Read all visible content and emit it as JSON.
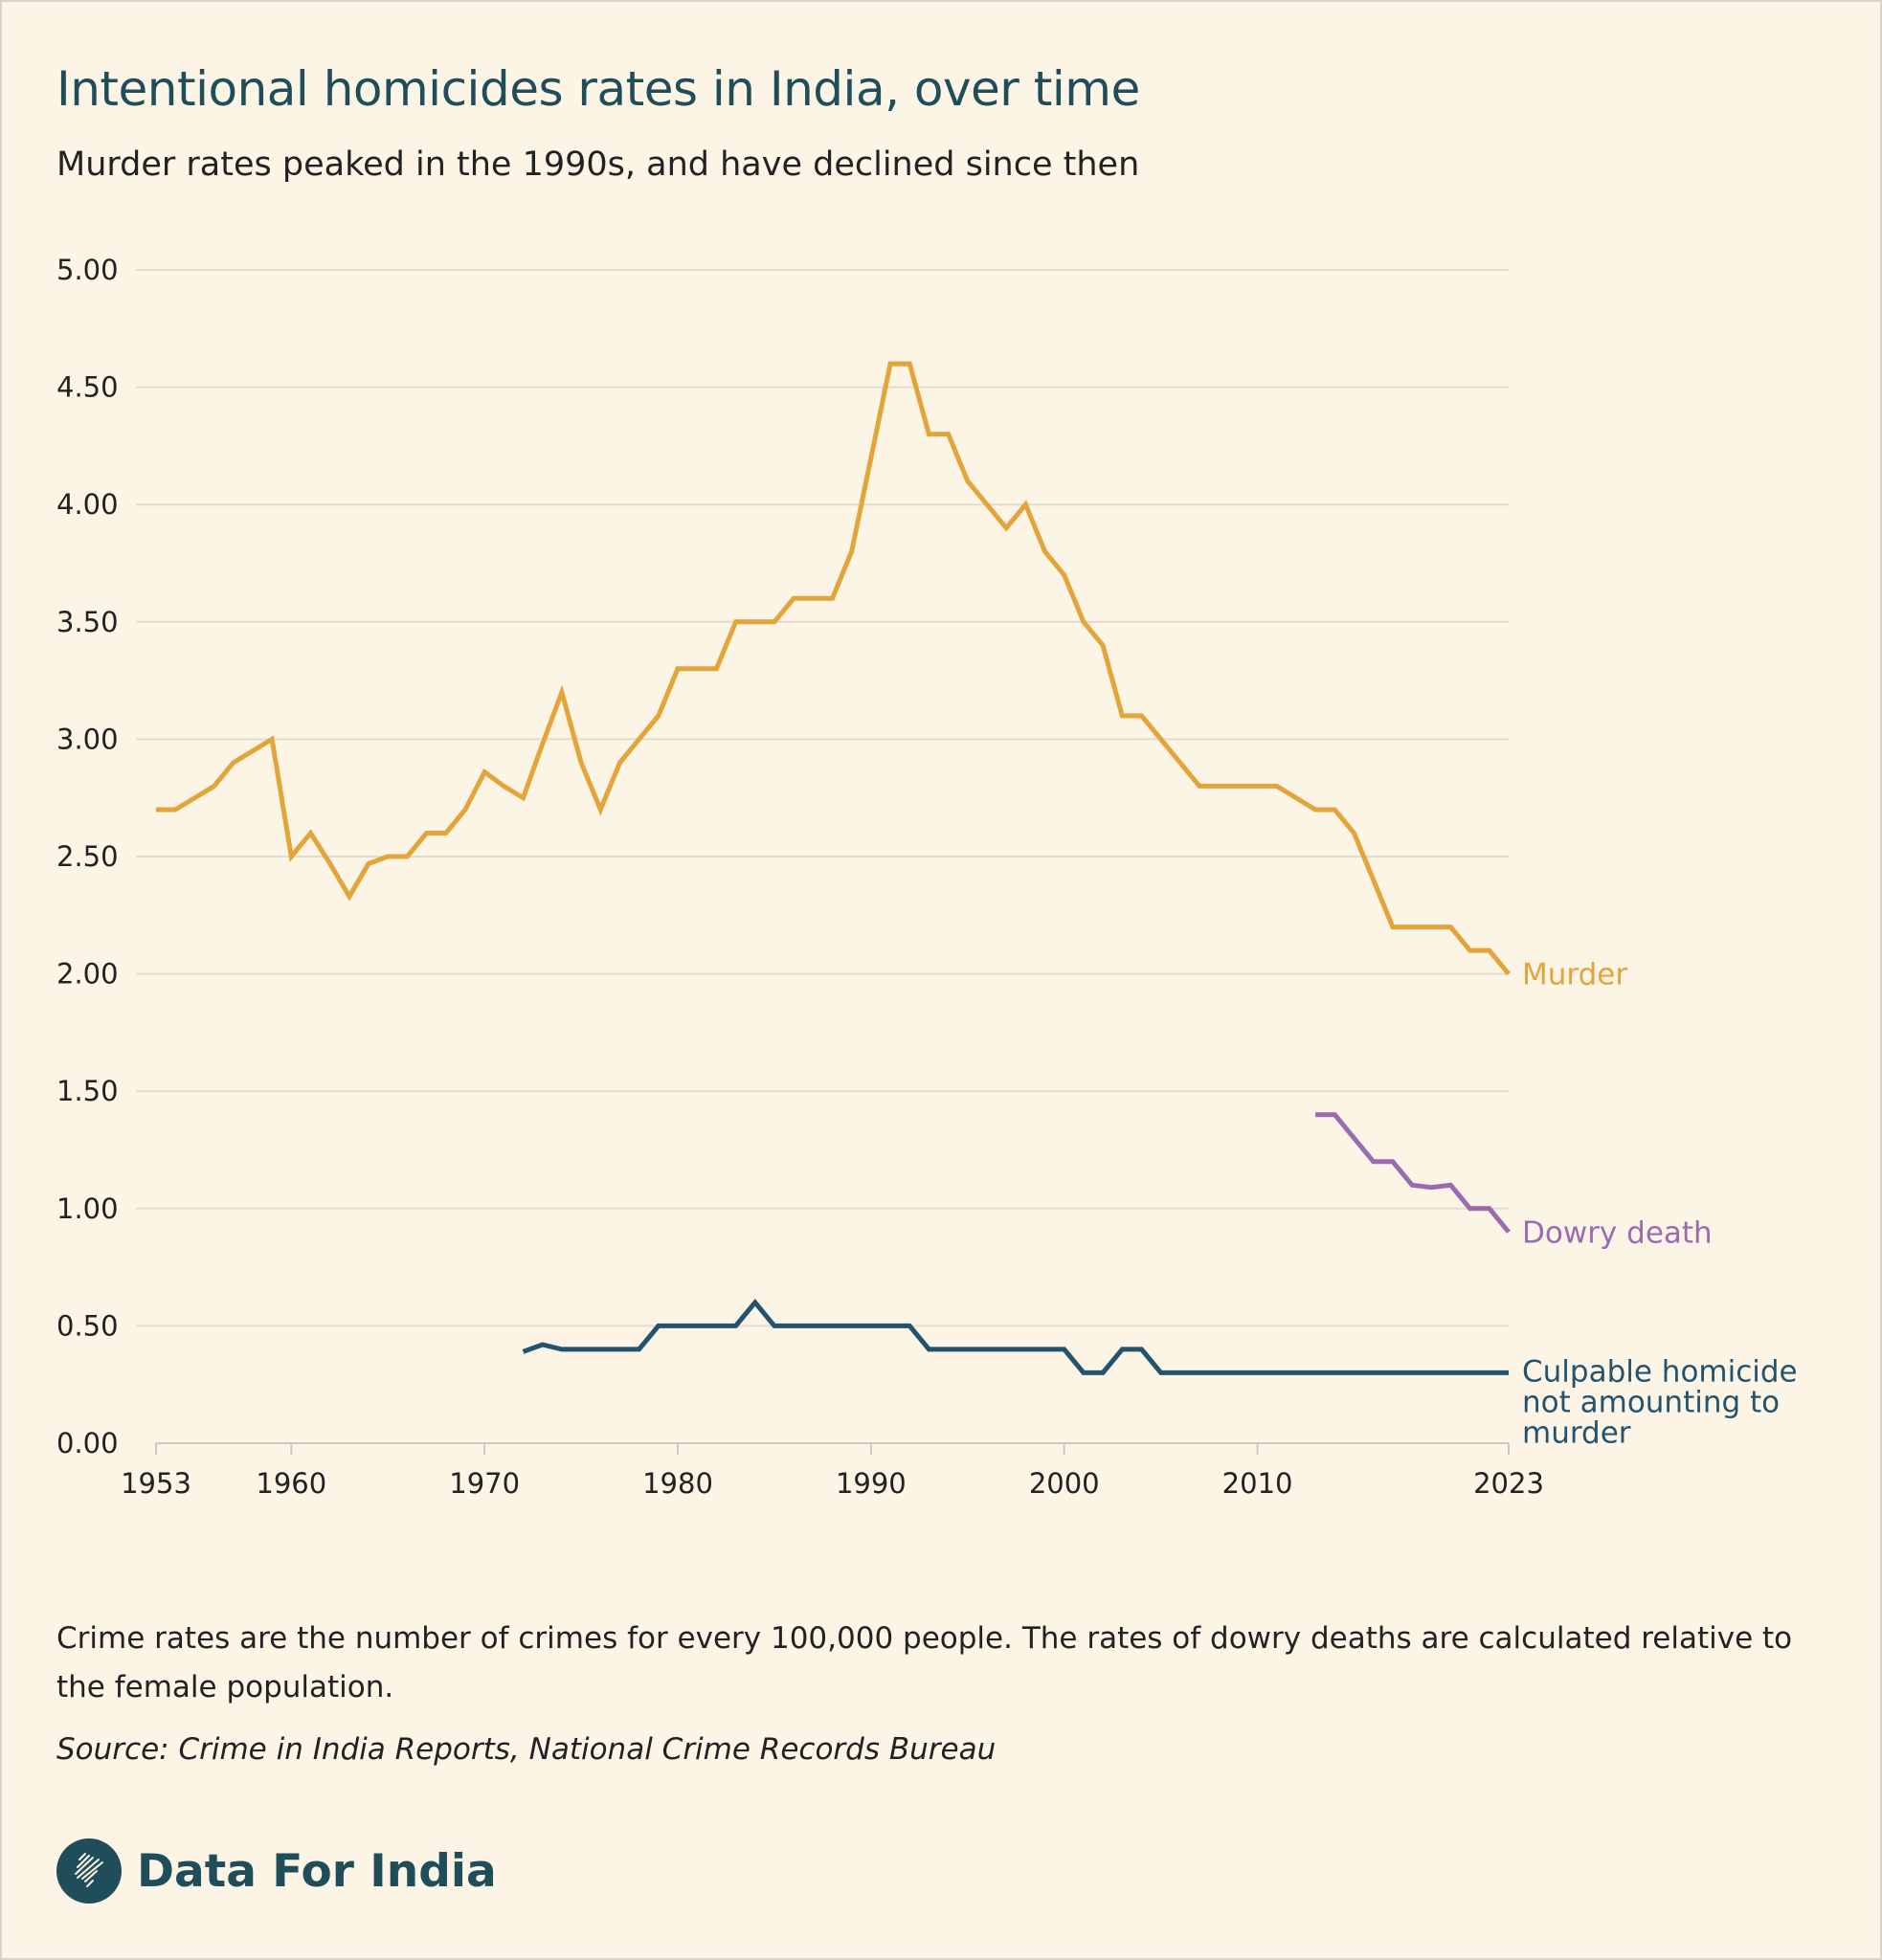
{
  "title": "Intentional homicides rates in India, over time",
  "subtitle": "Murder rates peaked in the 1990s, and have declined since then",
  "note": "Crime rates are the number of crimes for every 100,000 people. The rates of dowry deaths are calculated relative to the female population.",
  "source": "Source: Crime in India Reports, National Crime Records Bureau",
  "brand": "Data For India",
  "logo_icon": "india-map-icon",
  "chart_data": {
    "type": "line",
    "title": "Intentional homicides rates in India, over time",
    "xlabel": "",
    "ylabel": "",
    "xlim": [
      1953,
      2023
    ],
    "ylim": [
      0,
      5
    ],
    "grid": true,
    "legend": "inline-right",
    "x_ticks": [
      "1953",
      "1960",
      "1970",
      "1980",
      "1990",
      "2000",
      "2010",
      "2023"
    ],
    "y_ticks": [
      "0.00",
      "0.50",
      "1.00",
      "1.50",
      "2.00",
      "2.50",
      "3.00",
      "3.50",
      "4.00",
      "4.50",
      "5.00"
    ],
    "series": [
      {
        "name": "Murder",
        "color": "#e3a43a",
        "x": [
          1953,
          1954,
          1955,
          1956,
          1957,
          1958,
          1959,
          1960,
          1961,
          1962,
          1963,
          1964,
          1965,
          1966,
          1967,
          1968,
          1969,
          1970,
          1971,
          1972,
          1973,
          1974,
          1975,
          1976,
          1977,
          1978,
          1979,
          1980,
          1981,
          1982,
          1983,
          1984,
          1985,
          1986,
          1987,
          1988,
          1989,
          1990,
          1991,
          1992,
          1993,
          1994,
          1995,
          1996,
          1997,
          1998,
          1999,
          2000,
          2001,
          2002,
          2003,
          2004,
          2005,
          2006,
          2007,
          2008,
          2009,
          2010,
          2011,
          2012,
          2013,
          2014,
          2015,
          2016,
          2017,
          2018,
          2019,
          2020,
          2021,
          2022,
          2023
        ],
        "values": [
          2.7,
          2.7,
          2.75,
          2.8,
          2.9,
          2.95,
          3.0,
          2.5,
          2.6,
          2.47,
          2.33,
          2.47,
          2.5,
          2.5,
          2.6,
          2.6,
          2.7,
          2.86,
          2.8,
          2.75,
          2.98,
          3.2,
          2.9,
          2.7,
          2.9,
          3.0,
          3.1,
          3.3,
          3.3,
          3.3,
          3.5,
          3.5,
          3.5,
          3.6,
          3.6,
          3.6,
          3.8,
          4.2,
          4.6,
          4.6,
          4.3,
          4.3,
          4.1,
          4.0,
          3.9,
          4.0,
          3.8,
          3.7,
          3.5,
          3.4,
          3.1,
          3.1,
          3.0,
          2.9,
          2.8,
          2.8,
          2.8,
          2.8,
          2.8,
          2.75,
          2.7,
          2.7,
          2.6,
          2.4,
          2.2,
          2.2,
          2.2,
          2.2,
          2.1,
          2.1,
          2.0
        ]
      },
      {
        "name": "Dowry death",
        "color": "#9b6bb0",
        "x": [
          2013,
          2014,
          2015,
          2016,
          2017,
          2018,
          2019,
          2020,
          2021,
          2022,
          2023
        ],
        "values": [
          1.4,
          1.4,
          1.3,
          1.2,
          1.2,
          1.1,
          1.09,
          1.1,
          1.0,
          1.0,
          0.9
        ]
      },
      {
        "name": "Culpable homicide not  amounting to murder",
        "label_lines": [
          "Culpable homicide",
          "not  amounting to",
          "murder"
        ],
        "color": "#23536f",
        "x": [
          1972,
          1973,
          1974,
          1975,
          1976,
          1977,
          1978,
          1979,
          1980,
          1981,
          1982,
          1983,
          1984,
          1985,
          1986,
          1987,
          1988,
          1989,
          1990,
          1991,
          1992,
          1993,
          1994,
          1995,
          1996,
          1997,
          1998,
          1999,
          2000,
          2001,
          2002,
          2003,
          2004,
          2005,
          2006,
          2007,
          2008,
          2009,
          2010,
          2011,
          2012,
          2013,
          2014,
          2015,
          2016,
          2017,
          2018,
          2019,
          2020,
          2021,
          2022,
          2023
        ],
        "values": [
          0.39,
          0.42,
          0.4,
          0.4,
          0.4,
          0.4,
          0.4,
          0.5,
          0.5,
          0.5,
          0.5,
          0.5,
          0.6,
          0.5,
          0.5,
          0.5,
          0.5,
          0.5,
          0.5,
          0.5,
          0.5,
          0.4,
          0.4,
          0.4,
          0.4,
          0.4,
          0.4,
          0.4,
          0.4,
          0.3,
          0.3,
          0.4,
          0.4,
          0.3,
          0.3,
          0.3,
          0.3,
          0.3,
          0.3,
          0.3,
          0.3,
          0.3,
          0.3,
          0.3,
          0.3,
          0.3,
          0.3,
          0.3,
          0.3,
          0.3,
          0.3,
          0.3
        ]
      }
    ]
  }
}
